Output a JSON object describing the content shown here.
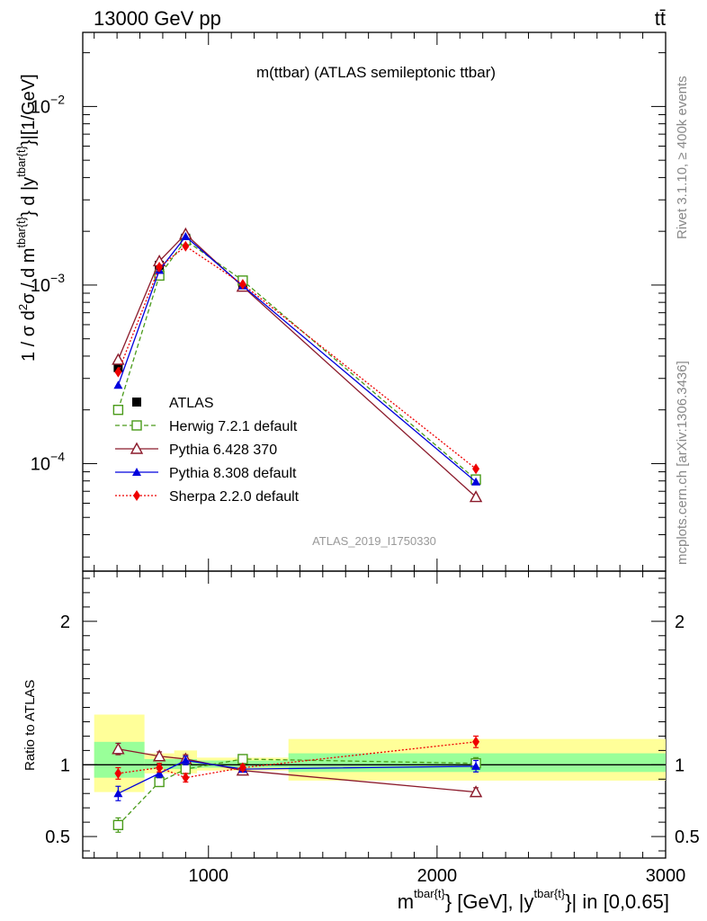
{
  "header": {
    "energy_label": "13000 GeV pp",
    "process_label": "tt̄"
  },
  "side_labels": {
    "rivet": "Rivet 3.1.10, ≥ 400k events",
    "mcplots": "mcplots.cern.ch [arXiv:1306.3436]"
  },
  "chart_data": [
    {
      "type": "line",
      "title": "m(ttbar) (ATLAS semileptonic ttbar)",
      "ylabel_parts": [
        "1 / σ d",
        "2",
        "σ / d m",
        "tbar{t}",
        "} d |y",
        "tbar{t}",
        "}|[1/GeV]"
      ],
      "yscale": "log",
      "ylim": [
        2.5e-05,
        0.026
      ],
      "ytick_labels": [
        {
          "value": 0.0001,
          "base": "10",
          "exp": "−4"
        },
        {
          "value": 0.001,
          "base": "10",
          "exp": "−3"
        },
        {
          "value": 0.01,
          "base": "10",
          "exp": "−2"
        }
      ],
      "xlim": [
        450,
        3000
      ],
      "watermark": "ATLAS_2019_I1750330",
      "legend_position": "lower-left",
      "series": [
        {
          "name": "ATLAS",
          "color": "#000000",
          "marker": "square-filled",
          "style": "none",
          "x": [
            605,
            785,
            900,
            1150,
            2170
          ],
          "y": [
            0.000345,
            0.00129,
            0.00183,
            0.00102,
            8.05e-05
          ]
        },
        {
          "name": "Herwig 7.2.1 default",
          "color": "#4a9b1a",
          "marker": "square-open",
          "style": "dashed",
          "x": [
            605,
            785,
            900,
            1150,
            2170
          ],
          "y": [
            0.0002,
            0.00113,
            0.00178,
            0.00106,
            8.15e-05
          ]
        },
        {
          "name": "Pythia 6.428 370",
          "color": "#8b1a2b",
          "marker": "triangle-open",
          "style": "solid",
          "x": [
            605,
            785,
            900,
            1150,
            2170
          ],
          "y": [
            0.000382,
            0.00136,
            0.00193,
            0.00098,
            6.5e-05
          ]
        },
        {
          "name": "Pythia 8.308 default",
          "color": "#0000dd",
          "marker": "triangle-filled",
          "style": "solid",
          "x": [
            605,
            785,
            900,
            1150,
            2170
          ],
          "y": [
            0.000275,
            0.00121,
            0.00187,
            0.00099,
            7.9e-05
          ]
        },
        {
          "name": "Sherpa 2.2.0 default",
          "color": "#ee0000",
          "marker": "diamond-filled",
          "style": "dotted",
          "x": [
            605,
            785,
            900,
            1150,
            2170
          ],
          "y": [
            0.000326,
            0.00126,
            0.00165,
            0.00101,
            9.35e-05
          ]
        }
      ]
    },
    {
      "type": "line",
      "ylabel": "Ratio to ATLAS",
      "ylim": [
        0.35,
        2.35
      ],
      "yticks": [
        0.5,
        1,
        2
      ],
      "ytick_labels": [
        "0.5",
        "1",
        "2"
      ],
      "xlim": [
        450,
        3000
      ],
      "xticks": [
        1000,
        2000,
        3000
      ],
      "xtick_labels": [
        "1000",
        "2000",
        "3000"
      ],
      "xlabel_parts": [
        "m",
        "tbar{t}",
        "} [GeV], |y",
        "tbar{t}",
        "}| in [0,0.65]"
      ],
      "bands": [
        {
          "xlo": 500,
          "xhi": 720,
          "stat": [
            0.91,
            1.16
          ],
          "total": [
            0.81,
            1.35
          ]
        },
        {
          "xlo": 720,
          "xhi": 850,
          "stat": [
            0.97,
            1.04
          ],
          "total": [
            0.94,
            1.08
          ]
        },
        {
          "xlo": 850,
          "xhi": 950,
          "stat": [
            0.97,
            1.04
          ],
          "total": [
            0.94,
            1.1
          ]
        },
        {
          "xlo": 950,
          "xhi": 1350,
          "stat": [
            0.98,
            1.03
          ],
          "total": [
            0.96,
            1.05
          ]
        },
        {
          "xlo": 1350,
          "xhi": 3000,
          "stat": [
            0.95,
            1.08
          ],
          "total": [
            0.89,
            1.18
          ]
        }
      ],
      "series": [
        {
          "name": "Herwig 7.2.1 default",
          "color": "#4a9b1a",
          "marker": "square-open",
          "style": "dashed",
          "x": [
            605,
            785,
            900,
            1150,
            2170
          ],
          "y": [
            0.58,
            0.88,
            0.97,
            1.04,
            1.01
          ],
          "err": [
            0.05,
            0.03,
            0.03,
            0.02,
            0.04
          ]
        },
        {
          "name": "Pythia 6.428 370",
          "color": "#8b1a2b",
          "marker": "triangle-open",
          "style": "solid",
          "x": [
            605,
            785,
            900,
            1150,
            2170
          ],
          "y": [
            1.11,
            1.06,
            1.04,
            0.96,
            0.81
          ],
          "err": [
            0.04,
            0.03,
            0.03,
            0.02,
            0.03
          ]
        },
        {
          "name": "Pythia 8.308 default",
          "color": "#0000dd",
          "marker": "triangle-filled",
          "style": "solid",
          "x": [
            605,
            785,
            900,
            1150,
            2170
          ],
          "y": [
            0.8,
            0.94,
            1.03,
            0.97,
            0.99
          ],
          "err": [
            0.05,
            0.03,
            0.03,
            0.02,
            0.04
          ]
        },
        {
          "name": "Sherpa 2.2.0 default",
          "color": "#ee0000",
          "marker": "diamond-filled",
          "style": "dotted",
          "x": [
            605,
            785,
            900,
            1150,
            2170
          ],
          "y": [
            0.94,
            0.98,
            0.91,
            0.98,
            1.16
          ],
          "err": [
            0.04,
            0.03,
            0.03,
            0.02,
            0.04
          ]
        }
      ]
    }
  ]
}
